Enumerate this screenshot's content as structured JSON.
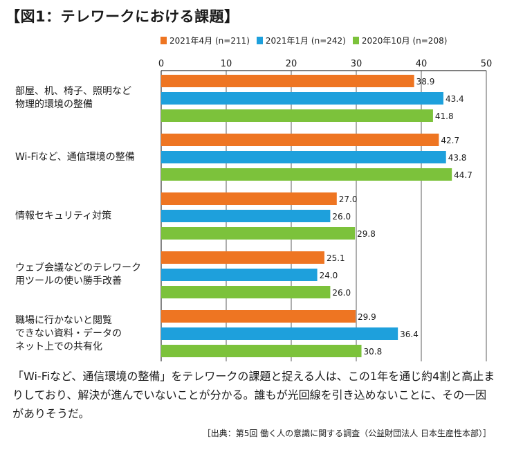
{
  "title": "【図1：テレワークにおける課題】",
  "legend": [
    {
      "label": "2021年4月 (n=211)",
      "color": "#ee7522"
    },
    {
      "label": "2021年1月 (n=242)",
      "color": "#1ea0dc"
    },
    {
      "label": "2020年10月 (n=208)",
      "color": "#7cc23b"
    }
  ],
  "chart_data": {
    "type": "bar",
    "orientation": "horizontal",
    "categories": [
      "部屋、机、椅子、照明など\n物理的環境の整備",
      "Wi-Fiなど、通信環境の整備",
      "情報セキュリティ対策",
      "ウェブ会議などのテレワーク\n用ツールの使い勝手改善",
      "職場に行かないと閲覧\nできない資料・データの\nネット上での共有化"
    ],
    "series": [
      {
        "name": "2021年4月 (n=211)",
        "color": "#ee7522",
        "values": [
          38.9,
          42.7,
          27.0,
          25.1,
          29.9
        ]
      },
      {
        "name": "2021年1月 (n=242)",
        "color": "#1ea0dc",
        "values": [
          43.4,
          43.8,
          26.0,
          24.0,
          36.4
        ]
      },
      {
        "name": "2020年10月 (n=208)",
        "color": "#7cc23b",
        "values": [
          41.8,
          44.7,
          29.8,
          26.0,
          30.8
        ]
      }
    ],
    "xlim": [
      0,
      50
    ],
    "xticks": [
      0,
      10,
      20,
      30,
      40,
      50
    ],
    "grid": true,
    "legend_position": "top"
  },
  "caption": "「Wi-Fiなど、通信環境の整備」をテレワークの課題と捉える人は、この1年を通じ約4割と高止まりしており、解決が進んでいないことが分かる。誰もが光回線を引き込めないことに、その一因がありそうだ。",
  "source": "［出典：第5回 働く人の意識に関する調査（公益財団法人 日本生産性本部）］"
}
